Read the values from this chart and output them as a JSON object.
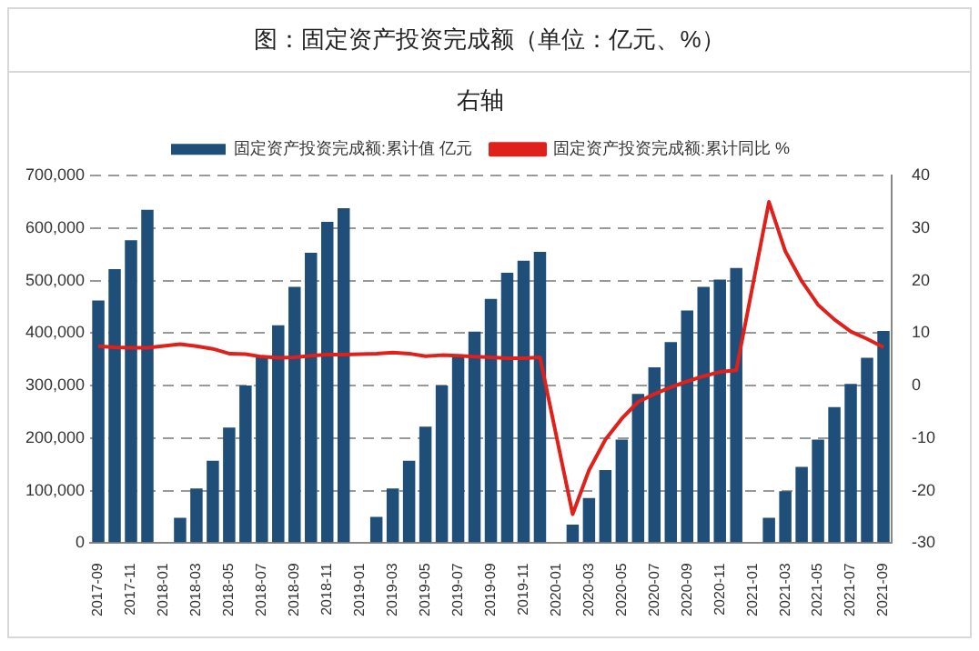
{
  "chart_data": {
    "type": "bar",
    "title": "图：固定资产投资完成额（单位：亿元、%）",
    "subtitle": "右轴",
    "categories": [
      "2017-09",
      null,
      "2017-11",
      null,
      "2018-01",
      null,
      "2018-03",
      null,
      "2018-05",
      null,
      "2018-07",
      null,
      "2018-09",
      null,
      "2018-11",
      null,
      "2019-01",
      null,
      "2019-03",
      null,
      "2019-05",
      null,
      "2019-07",
      null,
      "2019-09",
      null,
      "2019-11",
      null,
      "2020-01",
      null,
      "2020-03",
      null,
      "2020-05",
      null,
      "2020-07",
      null,
      "2020-09",
      null,
      "2020-11",
      null,
      "2021-01",
      null,
      "2021-03",
      null,
      "2021-05",
      null,
      "2021-07",
      null,
      "2021-09"
    ],
    "series": [
      {
        "name": "固定资产投资完成额:累计值 亿元",
        "color": "#1f4e79",
        "values": [
          462000,
          522000,
          577000,
          635000,
          null,
          48000,
          104000,
          157000,
          220000,
          300000,
          356000,
          415000,
          488000,
          553000,
          612000,
          638000,
          null,
          50000,
          104000,
          157000,
          222000,
          300000,
          357000,
          403000,
          465000,
          515000,
          538000,
          555000,
          null,
          35000,
          86000,
          139000,
          197000,
          284000,
          335000,
          383000,
          443000,
          488000,
          502000,
          524000,
          null,
          48000,
          99000,
          145000,
          197000,
          259000,
          303000,
          353000,
          404000
        ]
      },
      {
        "name": "固定资产投资完成额:累计同比 %",
        "type": "line",
        "axis": "y2",
        "color": "#e0201b",
        "values": [
          7.5,
          7.3,
          7.2,
          7.2,
          null,
          7.9,
          7.5,
          7.0,
          6.1,
          6.0,
          5.5,
          5.3,
          5.4,
          5.7,
          5.9,
          5.9,
          null,
          6.1,
          6.3,
          6.1,
          5.6,
          5.8,
          5.7,
          5.5,
          5.4,
          5.2,
          5.2,
          5.4,
          null,
          -24.5,
          -16.1,
          -10.3,
          -6.3,
          -3.1,
          -1.6,
          -0.3,
          0.8,
          1.8,
          2.6,
          2.9,
          null,
          35.0,
          25.6,
          19.9,
          15.4,
          12.6,
          10.3,
          8.9,
          7.3
        ]
      }
    ],
    "ylim": [
      0,
      700000
    ],
    "yticks": [
      0,
      {
        "value": 100000,
        "label": "100,000"
      },
      {
        "value": 200000,
        "label": "200,000"
      },
      {
        "value": 300000,
        "label": "300,000"
      },
      {
        "value": 400000,
        "label": "400,000"
      },
      {
        "value": 500000,
        "label": "500,000"
      },
      {
        "value": 600000,
        "label": "600,000"
      },
      {
        "value": 700000,
        "label": "700,000"
      }
    ],
    "y2lim": [
      -30,
      40
    ],
    "y2ticks": [
      -30,
      -20,
      -10,
      0,
      10,
      20,
      30,
      40
    ],
    "grid": "y",
    "legend": "top",
    "marker": "none",
    "line_style": "solid"
  }
}
